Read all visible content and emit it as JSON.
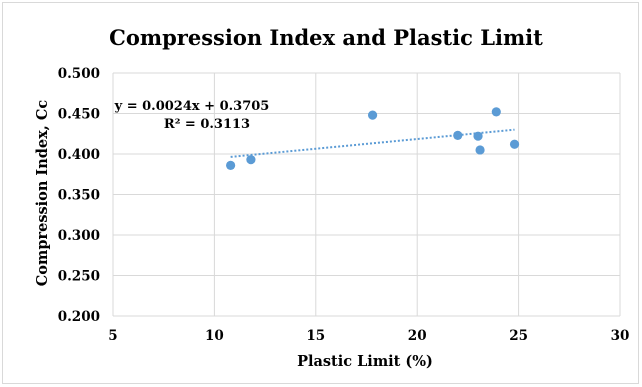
{
  "chart_data": {
    "type": "scatter",
    "title": "Compression Index and Plastic Limit",
    "xlabel": "Plastic Limit (%)",
    "ylabel": "Compression Index, Cc",
    "xlim": [
      5,
      30
    ],
    "ylim": [
      0.2,
      0.5
    ],
    "x_ticks": [
      "5",
      "10",
      "15",
      "20",
      "25",
      "30"
    ],
    "y_ticks": [
      "0.200",
      "0.250",
      "0.300",
      "0.350",
      "0.400",
      "0.450",
      "0.500"
    ],
    "grid": true,
    "points": [
      {
        "x": 10.8,
        "y": 0.386
      },
      {
        "x": 11.8,
        "y": 0.393
      },
      {
        "x": 17.8,
        "y": 0.448
      },
      {
        "x": 22.0,
        "y": 0.423
      },
      {
        "x": 23.0,
        "y": 0.422
      },
      {
        "x": 23.1,
        "y": 0.405
      },
      {
        "x": 23.9,
        "y": 0.452
      },
      {
        "x": 24.8,
        "y": 0.412
      }
    ],
    "trendline": {
      "type": "linear",
      "slope": 0.0024,
      "intercept": 0.3705,
      "x_range": [
        10.8,
        24.8
      ],
      "equation": "y = 0.0024x + 0.3705",
      "r2_label": "R² = 0.3113"
    },
    "marker_color": "#5b9bd5"
  }
}
